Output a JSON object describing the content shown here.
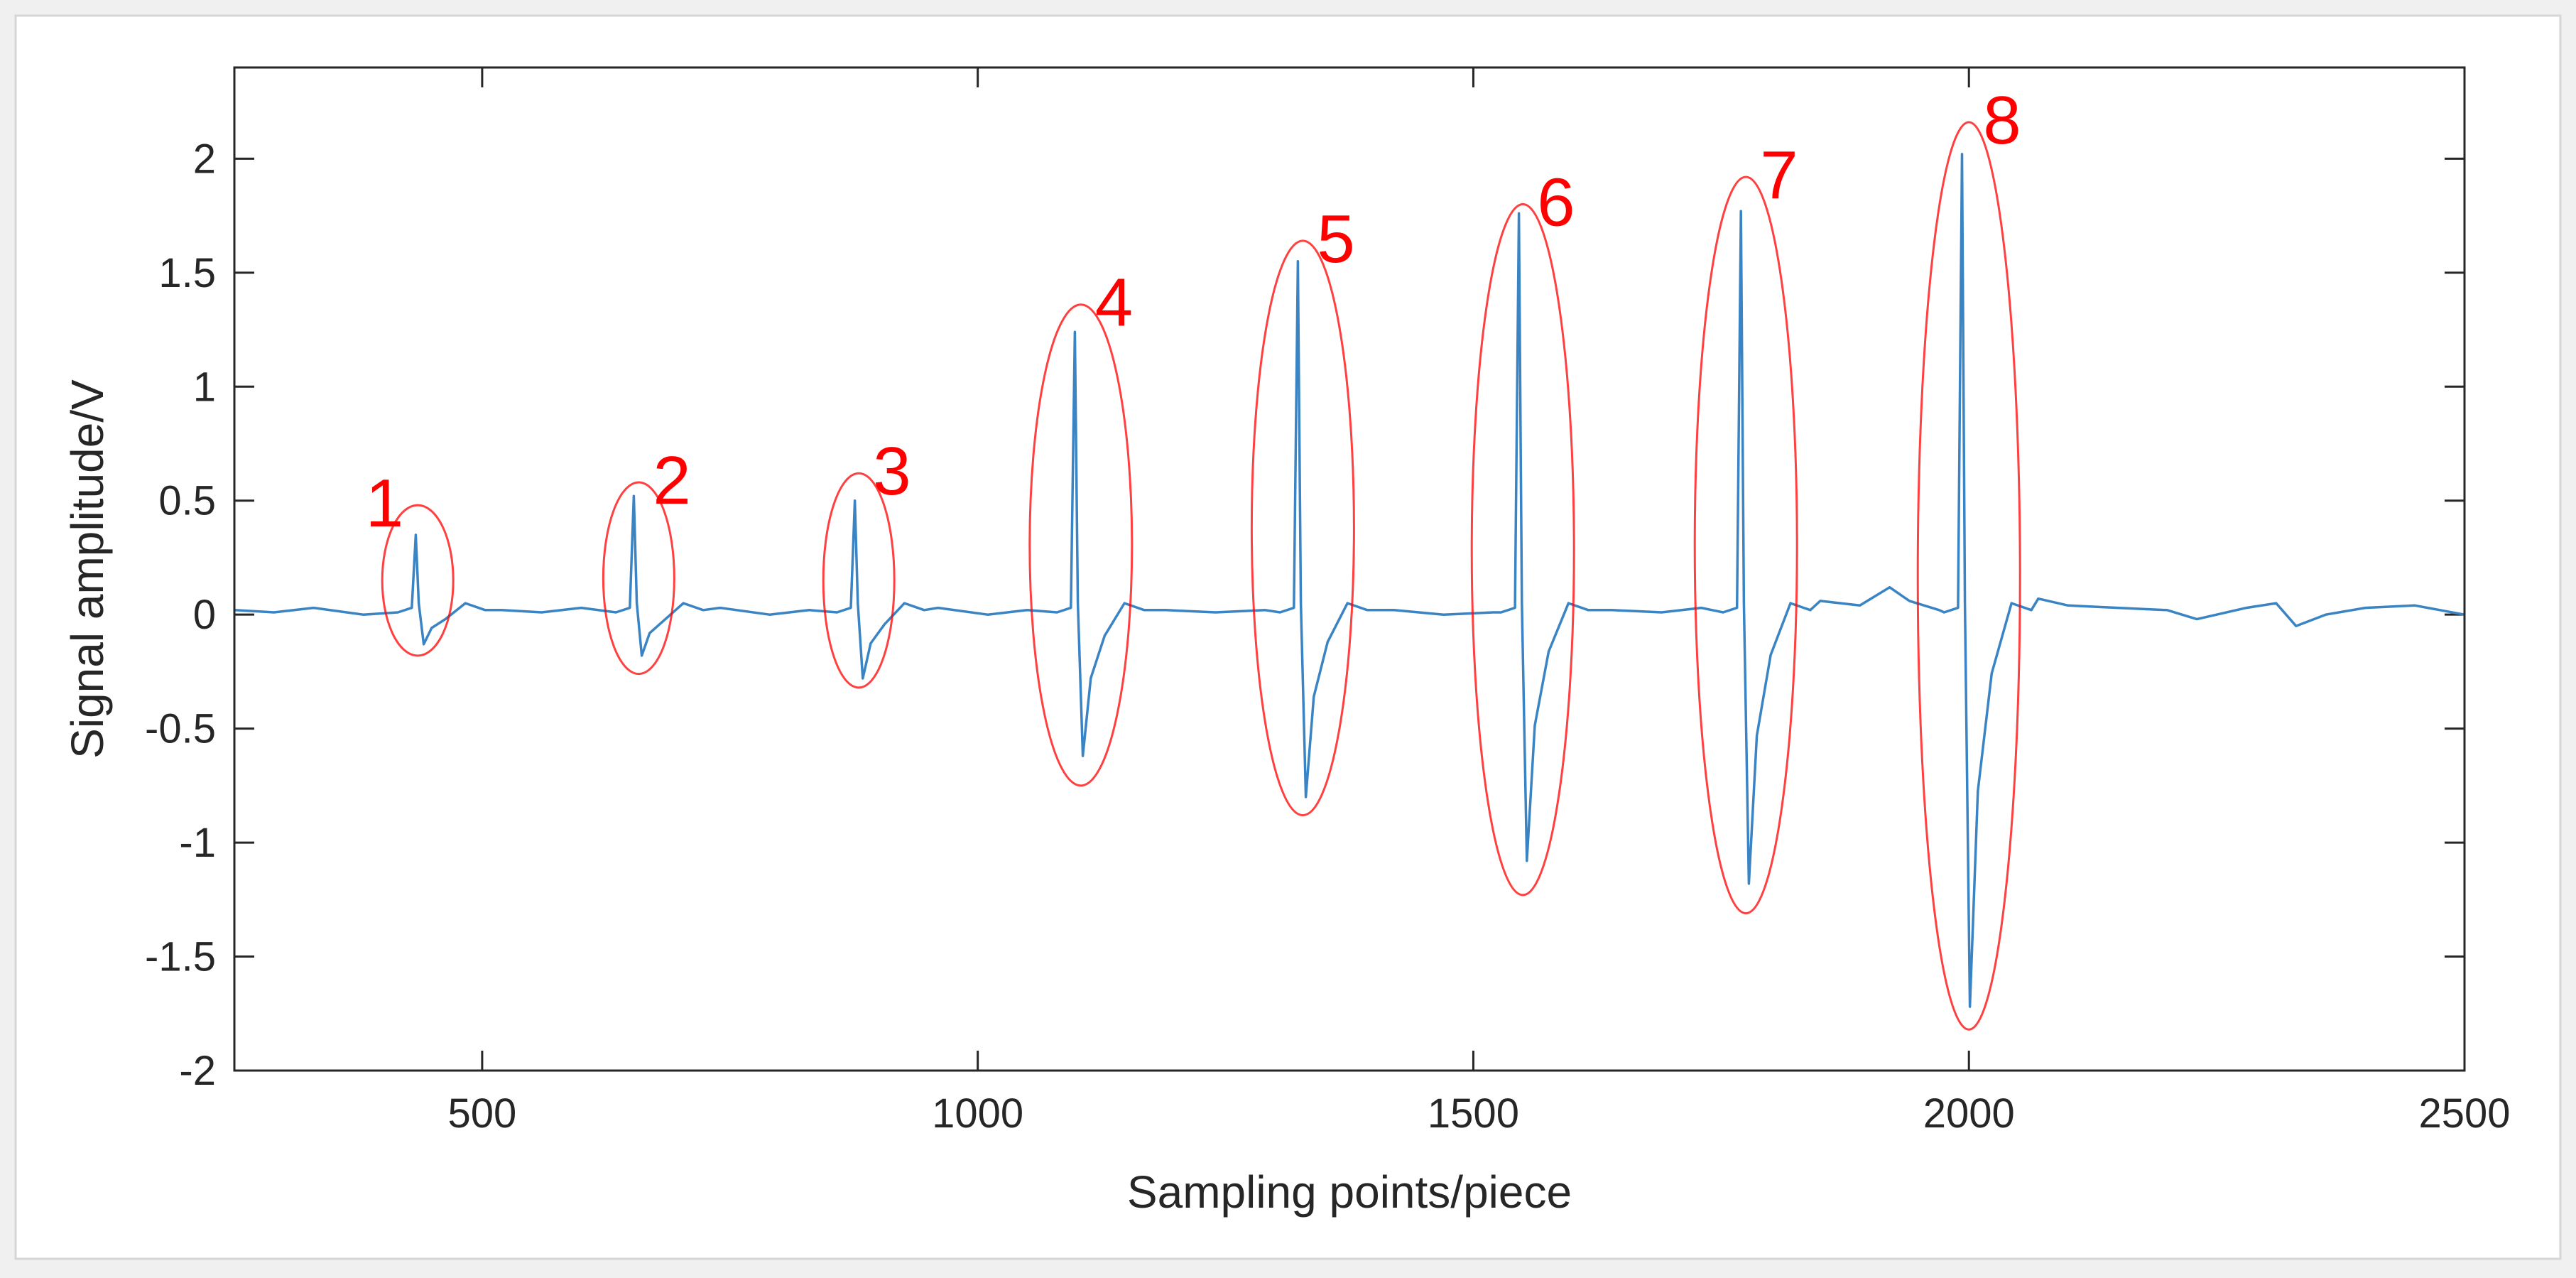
{
  "chart_data": {
    "type": "line",
    "xlabel": "Sampling points/piece",
    "ylabel": "Signal amplitude/V",
    "xlim": [
      250,
      2500
    ],
    "ylim": [
      -2,
      2.4
    ],
    "xticks": [
      500,
      1000,
      1500,
      2000,
      2500
    ],
    "yticks": [
      -2,
      -1.5,
      -1,
      -0.5,
      0,
      0.5,
      1,
      1.5,
      2
    ],
    "grid": false,
    "series": [
      {
        "color": "#3a84c4",
        "baseline_points": [
          [
            250,
            0.02
          ],
          [
            290,
            0.01
          ],
          [
            330,
            0.03
          ],
          [
            380,
            0.0
          ],
          [
            420,
            0.02
          ],
          [
            470,
            0.03
          ],
          [
            520,
            0.02
          ],
          [
            560,
            0.01
          ],
          [
            600,
            0.03
          ],
          [
            640,
            0.02
          ],
          [
            690,
            0.02
          ],
          [
            740,
            0.03
          ],
          [
            790,
            0.0
          ],
          [
            830,
            0.02
          ],
          [
            860,
            0.01
          ],
          [
            910,
            0.02
          ],
          [
            960,
            0.03
          ],
          [
            1010,
            0.0
          ],
          [
            1050,
            0.02
          ],
          [
            1080,
            0.01
          ],
          [
            1140,
            0.03
          ],
          [
            1190,
            0.02
          ],
          [
            1240,
            0.01
          ],
          [
            1290,
            0.02
          ],
          [
            1310,
            0.0
          ],
          [
            1370,
            0.03
          ],
          [
            1420,
            0.02
          ],
          [
            1470,
            0.0
          ],
          [
            1520,
            0.01
          ],
          [
            1540,
            0.0
          ],
          [
            1580,
            0.02
          ],
          [
            1640,
            0.02
          ],
          [
            1690,
            0.01
          ],
          [
            1730,
            0.03
          ],
          [
            1760,
            0.0
          ],
          [
            1800,
            0.03
          ],
          [
            1850,
            0.06
          ],
          [
            1890,
            0.04
          ],
          [
            1920,
            0.12
          ],
          [
            1940,
            0.06
          ],
          [
            1970,
            0.02
          ],
          [
            1990,
            0.0
          ],
          [
            2040,
            0.09
          ],
          [
            2070,
            0.07
          ],
          [
            2100,
            0.04
          ],
          [
            2150,
            0.03
          ],
          [
            2200,
            0.02
          ],
          [
            2230,
            -0.02
          ],
          [
            2280,
            0.03
          ],
          [
            2310,
            0.05
          ],
          [
            2330,
            -0.05
          ],
          [
            2360,
            0.0
          ],
          [
            2400,
            0.03
          ],
          [
            2450,
            0.04
          ],
          [
            2500,
            0.0
          ]
        ],
        "pulses": [
          {
            "x": 435,
            "peak": 0.35,
            "trough": -0.13
          },
          {
            "x": 655,
            "peak": 0.52,
            "trough": -0.18
          },
          {
            "x": 878,
            "peak": 0.5,
            "trough": -0.28
          },
          {
            "x": 1100,
            "peak": 1.24,
            "trough": -0.62
          },
          {
            "x": 1325,
            "peak": 1.55,
            "trough": -0.8
          },
          {
            "x": 1548,
            "peak": 1.76,
            "trough": -1.08
          },
          {
            "x": 1772,
            "peak": 1.77,
            "trough": -1.18
          },
          {
            "x": 1995,
            "peak": 2.02,
            "trough": -1.72
          }
        ]
      }
    ],
    "annotations": {
      "color": "#ff0000",
      "items": [
        {
          "label": "1",
          "x": 435,
          "y_top": 0.48,
          "y_bottom": -0.18
        },
        {
          "label": "2",
          "x": 658,
          "y_top": 0.58,
          "y_bottom": -0.26
        },
        {
          "label": "3",
          "x": 880,
          "y_top": 0.62,
          "y_bottom": -0.32
        },
        {
          "label": "4",
          "x": 1104,
          "y_top": 1.36,
          "y_bottom": -0.75
        },
        {
          "label": "5",
          "x": 1328,
          "y_top": 1.64,
          "y_bottom": -0.88
        },
        {
          "label": "6",
          "x": 1550,
          "y_top": 1.8,
          "y_bottom": -1.23
        },
        {
          "label": "7",
          "x": 1775,
          "y_top": 1.92,
          "y_bottom": -1.31
        },
        {
          "label": "8",
          "x": 2000,
          "y_top": 2.16,
          "y_bottom": -1.82
        }
      ]
    }
  }
}
